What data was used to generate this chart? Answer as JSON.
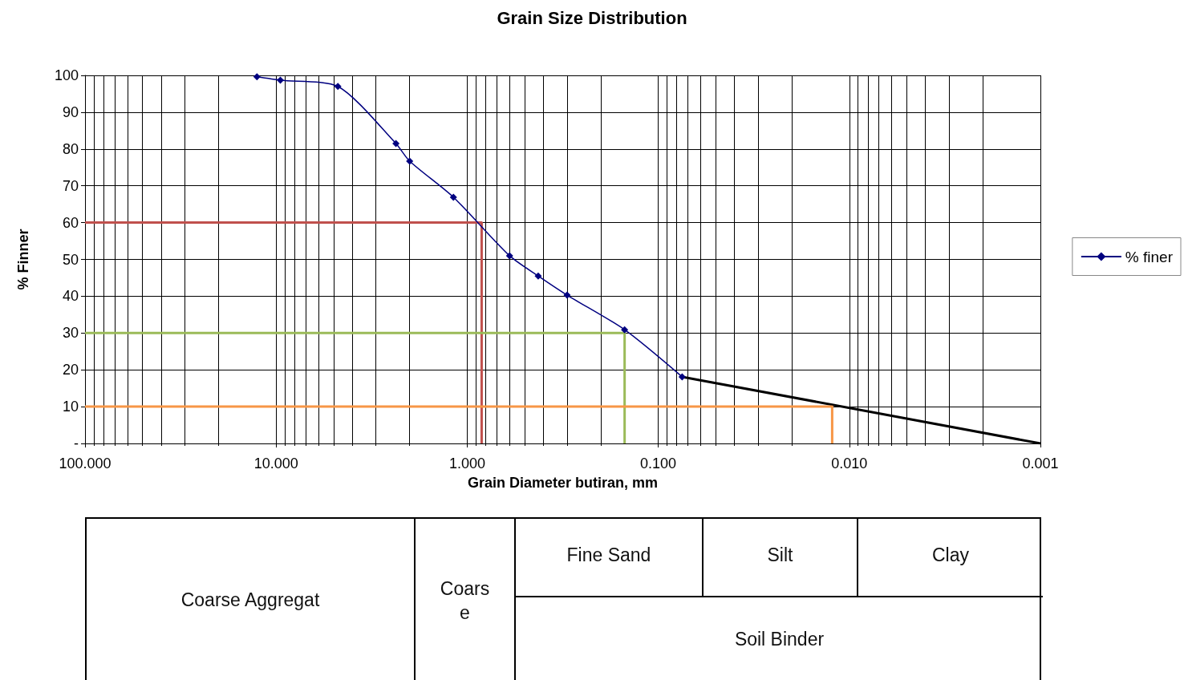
{
  "chart_data": {
    "type": "line",
    "title": "Grain Size Distribution",
    "xlabel": "Grain Diameter butiran, mm",
    "ylabel": "% Finner",
    "log": "x",
    "xlim": [
      100,
      0.001
    ],
    "xticks": [
      {
        "value": 100,
        "label": "100.000"
      },
      {
        "value": 10,
        "label": "10.000"
      },
      {
        "value": 1,
        "label": "1.000"
      },
      {
        "value": 0.1,
        "label": "0.100"
      },
      {
        "value": 0.01,
        "label": "0.010"
      },
      {
        "value": 0.001,
        "label": "0.001"
      }
    ],
    "ylim": [
      0,
      100
    ],
    "yticks": [
      {
        "value": 0,
        "label": "-"
      },
      10,
      20,
      30,
      40,
      50,
      60,
      70,
      80,
      90,
      100
    ],
    "grid": true,
    "legend": "right",
    "series": [
      {
        "name": "% finer",
        "color": "#000080",
        "marker": "diamond",
        "x": [
          12.6,
          9.5,
          4.75,
          2.36,
          2.0,
          1.18,
          0.6,
          0.425,
          0.3,
          0.15,
          0.075
        ],
        "values": [
          99.6,
          98.7,
          97,
          81.5,
          76.7,
          66.9,
          51,
          45.5,
          40.3,
          30.9,
          18.1
        ]
      },
      {
        "color": "#000000",
        "marker": "none",
        "x": [
          0.075,
          0.001
        ],
        "values": [
          18.1,
          0
        ]
      },
      {
        "color": "#c0504d",
        "marker": "none",
        "x": [
          100,
          0.84,
          0.84
        ],
        "values": [
          60,
          60,
          0
        ]
      },
      {
        "color": "#9bbb59",
        "marker": "none",
        "x": [
          100,
          0.15,
          0.15
        ],
        "values": [
          30,
          30,
          0
        ]
      },
      {
        "color": "#f79646",
        "marker": "none",
        "x": [
          100,
          0.0123,
          0.0123
        ],
        "values": [
          10,
          10,
          0
        ]
      }
    ],
    "annotations": [
      "Coarse Aggregat",
      "Coarse",
      "Fine Sand",
      "Silt",
      "Clay",
      "Soil Binder"
    ]
  }
}
